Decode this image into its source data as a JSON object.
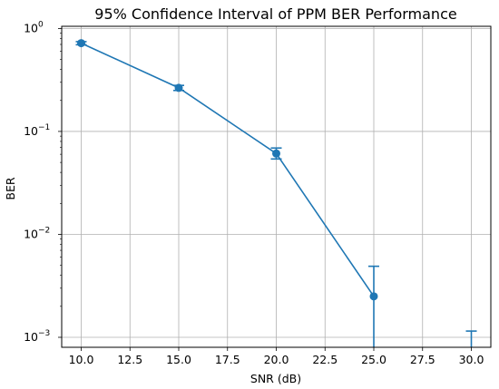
{
  "chart_data": {
    "type": "line",
    "title": "95% Confidence Interval of PPM BER Performance",
    "xlabel": "SNR (dB)",
    "ylabel": "BER",
    "xlim": [
      9.0,
      31.0
    ],
    "ylim": [
      0.0008,
      1.05
    ],
    "yscale": "log",
    "grid": true,
    "x_ticks": [
      10.0,
      12.5,
      15.0,
      17.5,
      20.0,
      22.5,
      25.0,
      27.5,
      30.0
    ],
    "x_tick_labels": [
      "10.0",
      "12.5",
      "15.0",
      "17.5",
      "20.0",
      "22.5",
      "25.0",
      "27.5",
      "30.0"
    ],
    "y_ticks": [
      {
        "value": 1,
        "base": "10",
        "exp": "0"
      },
      {
        "value": 0.1,
        "base": "10",
        "exp": "−1"
      },
      {
        "value": 0.01,
        "base": "10",
        "exp": "−2"
      },
      {
        "value": 0.001,
        "base": "10",
        "exp": "−3"
      }
    ],
    "color": "#1f77b4",
    "series": [
      {
        "x": [
          10.0,
          15.0,
          20.0,
          25.0,
          30.0
        ],
        "y": [
          0.72,
          0.265,
          0.061,
          0.0025,
          null
        ],
        "err_low": [
          0.695,
          0.25,
          0.054,
          0.0,
          0.0
        ],
        "err_high": [
          0.745,
          0.28,
          0.069,
          0.0049,
          0.00115
        ]
      }
    ]
  }
}
